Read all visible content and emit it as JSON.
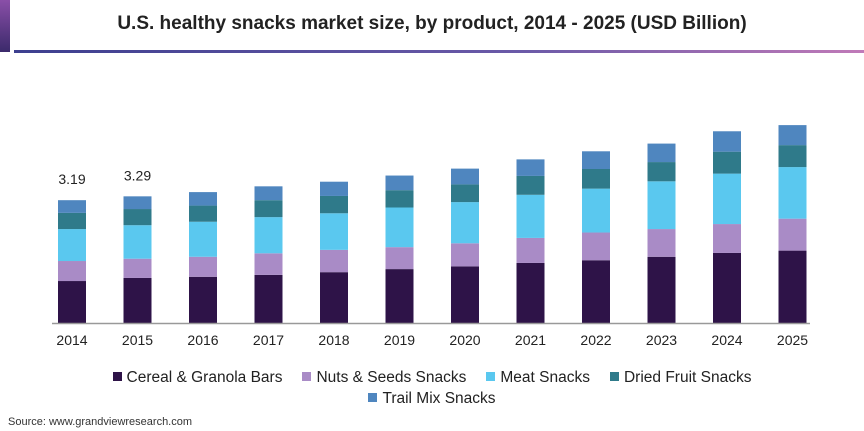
{
  "chart_data": {
    "type": "bar",
    "stacked": true,
    "title": "U.S. healthy snacks market size, by product, 2014 - 2025 (USD Billion)",
    "xlabel": "",
    "ylabel": "",
    "ylim": [
      0,
      5.5
    ],
    "grid": false,
    "legend_position": "bottom",
    "categories": [
      "2014",
      "2015",
      "2016",
      "2017",
      "2018",
      "2019",
      "2020",
      "2021",
      "2022",
      "2023",
      "2024",
      "2025"
    ],
    "series": [
      {
        "name": "Cereal & Granola Bars",
        "color": "#2e1348",
        "values": [
          1.09,
          1.17,
          1.2,
          1.25,
          1.32,
          1.4,
          1.47,
          1.56,
          1.63,
          1.72,
          1.82,
          1.88
        ]
      },
      {
        "name": "Nuts & Seeds Snacks",
        "color": "#a98bc6",
        "values": [
          0.52,
          0.5,
          0.52,
          0.56,
          0.58,
          0.57,
          0.6,
          0.65,
          0.72,
          0.72,
          0.75,
          0.83
        ]
      },
      {
        "name": "Meat Snacks",
        "color": "#5ac8ef",
        "values": [
          0.83,
          0.87,
          0.91,
          0.94,
          0.95,
          1.03,
          1.07,
          1.12,
          1.14,
          1.24,
          1.31,
          1.34
        ]
      },
      {
        "name": "Dried Fruit Snacks",
        "color": "#2f7a8a",
        "values": [
          0.42,
          0.42,
          0.42,
          0.44,
          0.45,
          0.45,
          0.46,
          0.49,
          0.51,
          0.5,
          0.57,
          0.57
        ]
      },
      {
        "name": "Trail Mix Snacks",
        "color": "#4f86bf",
        "values": [
          0.33,
          0.33,
          0.35,
          0.36,
          0.37,
          0.38,
          0.41,
          0.43,
          0.46,
          0.48,
          0.53,
          0.52
        ]
      }
    ],
    "annotations": [
      {
        "category": "2014",
        "text": "3.19"
      },
      {
        "category": "2015",
        "text": "3.29"
      }
    ]
  },
  "source": "Source: www.grandviewresearch.com"
}
